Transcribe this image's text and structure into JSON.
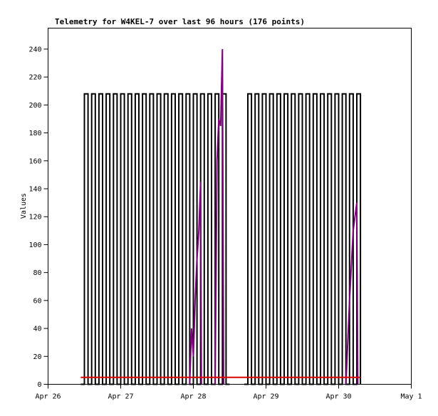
{
  "chart_data": {
    "type": "line",
    "title": "Telemetry for W4KEL-7 over last 96 hours (176 points)",
    "xlabel": "",
    "ylabel": "Values",
    "xlim": [
      "04-26 00:00",
      "05-01 00:00"
    ],
    "ylim": [
      0,
      255
    ],
    "x_ticks": [
      {
        "at": "04-26 00:00",
        "label": "Apr 26"
      },
      {
        "at": "04-27 00:00",
        "label": "Apr 27"
      },
      {
        "at": "04-28 00:00",
        "label": "Apr 28"
      },
      {
        "at": "04-29 00:00",
        "label": "Apr 29"
      },
      {
        "at": "04-30 00:00",
        "label": "Apr 30"
      },
      {
        "at": "05-01 00:00",
        "label": "May 1"
      }
    ],
    "y_ticks": [
      0,
      20,
      40,
      60,
      80,
      100,
      120,
      140,
      160,
      180,
      200,
      220,
      240
    ],
    "grid": false,
    "series": [
      {
        "color": "#000000",
        "step": true,
        "points": [
          [
            "04-26 10:48",
            0
          ],
          [
            "04-26 12:00",
            208
          ],
          [
            "04-26 13:12",
            0
          ],
          [
            "04-26 14:24",
            208
          ],
          [
            "04-26 15:36",
            0
          ],
          [
            "04-26 16:48",
            208
          ],
          [
            "04-26 18:00",
            0
          ],
          [
            "04-26 19:12",
            208
          ],
          [
            "04-26 20:24",
            0
          ],
          [
            "04-26 21:36",
            208
          ],
          [
            "04-26 22:48",
            0
          ],
          [
            "04-27 00:00",
            208
          ],
          [
            "04-27 01:12",
            0
          ],
          [
            "04-27 02:24",
            208
          ],
          [
            "04-27 03:36",
            0
          ],
          [
            "04-27 04:48",
            208
          ],
          [
            "04-27 06:00",
            0
          ],
          [
            "04-27 07:12",
            208
          ],
          [
            "04-27 08:24",
            0
          ],
          [
            "04-27 09:36",
            208
          ],
          [
            "04-27 10:48",
            0
          ],
          [
            "04-27 12:00",
            208
          ],
          [
            "04-27 13:12",
            0
          ],
          [
            "04-27 14:24",
            208
          ],
          [
            "04-27 15:36",
            0
          ],
          [
            "04-27 16:48",
            208
          ],
          [
            "04-27 18:00",
            0
          ],
          [
            "04-27 19:12",
            208
          ],
          [
            "04-27 20:24",
            0
          ],
          [
            "04-27 21:36",
            208
          ],
          [
            "04-27 22:48",
            0
          ],
          [
            "04-28 00:00",
            208
          ],
          [
            "04-28 01:12",
            0
          ],
          [
            "04-28 02:24",
            208
          ],
          [
            "04-28 03:36",
            0
          ],
          [
            "04-28 04:48",
            208
          ],
          [
            "04-28 06:00",
            0
          ],
          [
            "04-28 07:12",
            208
          ],
          [
            "04-28 08:24",
            0
          ],
          [
            "04-28 09:36",
            208
          ],
          [
            "04-28 10:48",
            0
          ],
          [
            "04-28 12:00",
            0
          ],
          null,
          [
            "04-28 16:48",
            0
          ],
          [
            "04-28 18:00",
            208
          ],
          [
            "04-28 19:12",
            0
          ],
          [
            "04-28 20:24",
            208
          ],
          [
            "04-28 21:36",
            0
          ],
          [
            "04-28 22:48",
            208
          ],
          [
            "04-29 00:00",
            0
          ],
          [
            "04-29 01:12",
            208
          ],
          [
            "04-29 02:24",
            0
          ],
          [
            "04-29 03:36",
            208
          ],
          [
            "04-29 04:48",
            0
          ],
          [
            "04-29 06:00",
            208
          ],
          [
            "04-29 07:12",
            0
          ],
          [
            "04-29 08:24",
            208
          ],
          [
            "04-29 09:36",
            0
          ],
          [
            "04-29 10:48",
            208
          ],
          [
            "04-29 12:00",
            0
          ],
          [
            "04-29 13:12",
            208
          ],
          [
            "04-29 14:24",
            0
          ],
          [
            "04-29 15:36",
            208
          ],
          [
            "04-29 16:48",
            0
          ],
          [
            "04-29 18:00",
            208
          ],
          [
            "04-29 19:12",
            0
          ],
          [
            "04-29 20:24",
            208
          ],
          [
            "04-29 21:36",
            0
          ],
          [
            "04-29 22:48",
            208
          ],
          [
            "04-30 00:00",
            0
          ],
          [
            "04-30 01:12",
            208
          ],
          [
            "04-30 02:24",
            0
          ],
          [
            "04-30 03:36",
            208
          ],
          [
            "04-30 04:48",
            0
          ],
          [
            "04-30 06:00",
            208
          ],
          [
            "04-30 07:12",
            0
          ]
        ]
      },
      {
        "color": "#800080",
        "step": false,
        "points": [
          [
            "04-27 22:48",
            0
          ],
          [
            "04-27 23:24",
            40
          ],
          [
            "04-28 00:00",
            20
          ],
          [
            "04-28 00:36",
            60
          ],
          [
            "04-28 01:12",
            90
          ],
          [
            "04-28 01:48",
            110
          ],
          [
            "04-28 02:24",
            145
          ],
          [
            "04-28 02:40",
            0
          ],
          null,
          [
            "04-28 07:12",
            0
          ],
          [
            "04-28 07:48",
            160
          ],
          [
            "04-28 08:24",
            190
          ],
          [
            "04-28 09:00",
            185
          ],
          [
            "04-28 09:36",
            240
          ],
          [
            "04-28 10:00",
            0
          ],
          null,
          [
            "04-30 02:24",
            0
          ],
          [
            "04-30 03:36",
            60
          ],
          [
            "04-30 04:48",
            110
          ],
          [
            "04-30 06:00",
            130
          ],
          [
            "04-30 06:20",
            0
          ]
        ]
      },
      {
        "color": "#dd0000",
        "step": false,
        "points": [
          [
            "04-26 10:48",
            5
          ],
          [
            "04-30 07:12",
            5
          ]
        ]
      }
    ]
  }
}
